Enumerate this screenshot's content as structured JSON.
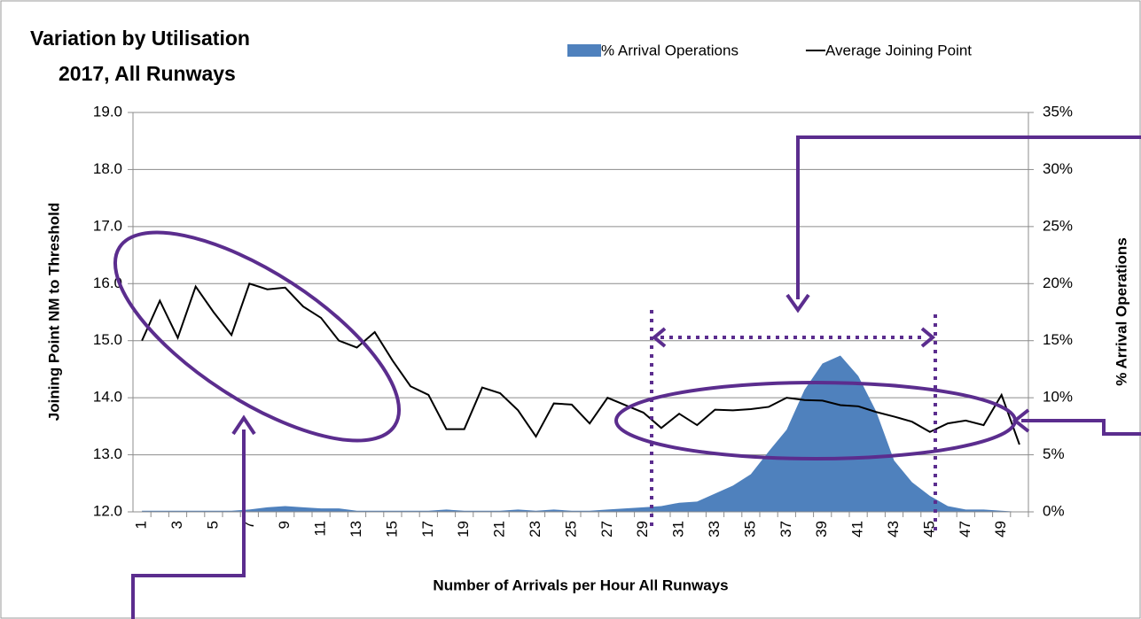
{
  "chart_data": {
    "type": "combo",
    "title": "Variation by Utilisation",
    "subtitle": "2017, All Runways",
    "x_label": "Number of Arrivals per Hour All Runways",
    "y_label": "Joining Point NM to Threshold",
    "y2_label": "% Arrival Operations",
    "categories": [
      "1",
      null,
      "3",
      null,
      "5",
      null,
      "7",
      null,
      "9",
      null,
      "11",
      null,
      "13",
      null,
      "15",
      null,
      "17",
      null,
      "19",
      null,
      "21",
      null,
      "23",
      null,
      "25",
      null,
      "27",
      null,
      "29",
      null,
      "31",
      null,
      "33",
      null,
      "35",
      null,
      "37",
      null,
      "39",
      null,
      "41",
      null,
      "43",
      null,
      "45",
      null,
      "47",
      null,
      "49",
      null
    ],
    "series": [
      {
        "name": "% Arrival Operations",
        "type": "area",
        "axis": "y2",
        "color": "#4f81bd",
        "values": [
          0.1,
          0.1,
          0.1,
          0.1,
          0.1,
          0.1,
          0.2,
          0.4,
          0.5,
          0.4,
          0.3,
          0.3,
          0.1,
          0.1,
          0.1,
          0.1,
          0.1,
          0.2,
          0.1,
          0.1,
          0.1,
          0.2,
          0.1,
          0.2,
          0.1,
          0.1,
          0.2,
          0.3,
          0.4,
          0.5,
          0.8,
          0.9,
          1.6,
          2.3,
          3.3,
          5.3,
          7.2,
          10.7,
          13.0,
          13.7,
          11.9,
          8.8,
          4.5,
          2.6,
          1.4,
          0.5,
          0.2,
          0.2,
          0.1,
          0
        ]
      },
      {
        "name": "Average Joining Point",
        "type": "line",
        "color": "#000000",
        "values": [
          15.0,
          15.7,
          15.05,
          15.95,
          15.5,
          15.1,
          16.0,
          15.9,
          15.93,
          15.6,
          15.4,
          15.0,
          14.88,
          15.15,
          14.65,
          14.2,
          14.05,
          13.45,
          13.45,
          14.18,
          14.08,
          13.78,
          13.32,
          13.9,
          13.88,
          13.55,
          14.0,
          13.87,
          13.74,
          13.47,
          13.72,
          13.52,
          13.79,
          13.78,
          13.8,
          13.84,
          14.0,
          13.96,
          13.95,
          13.87,
          13.85,
          13.75,
          13.67,
          13.58,
          13.4,
          13.55,
          13.6,
          13.52,
          14.05,
          13.18
        ]
      }
    ],
    "ylim": [
      12,
      19
    ],
    "yticks": [
      {
        "value": 12,
        "label": "12.0"
      },
      {
        "value": 13,
        "label": "13.0"
      },
      {
        "value": 14,
        "label": "14.0"
      },
      {
        "value": 15,
        "label": "15.0"
      },
      {
        "value": 16,
        "label": "16.0"
      },
      {
        "value": 17,
        "label": "17.0"
      },
      {
        "value": 18,
        "label": "18.0"
      },
      {
        "value": 19,
        "label": "19.0"
      }
    ],
    "y2lim": [
      0,
      35
    ],
    "y2ticks": [
      {
        "value": 0,
        "label": "0%"
      },
      {
        "value": 5,
        "label": "5%"
      },
      {
        "value": 10,
        "label": "10%"
      },
      {
        "value": 15,
        "label": "15%"
      },
      {
        "value": 20,
        "label": "20%"
      },
      {
        "value": 25,
        "label": "25%"
      },
      {
        "value": 30,
        "label": "30%"
      },
      {
        "value": 35,
        "label": "35%"
      }
    ],
    "grid": true,
    "legend": "top"
  }
}
